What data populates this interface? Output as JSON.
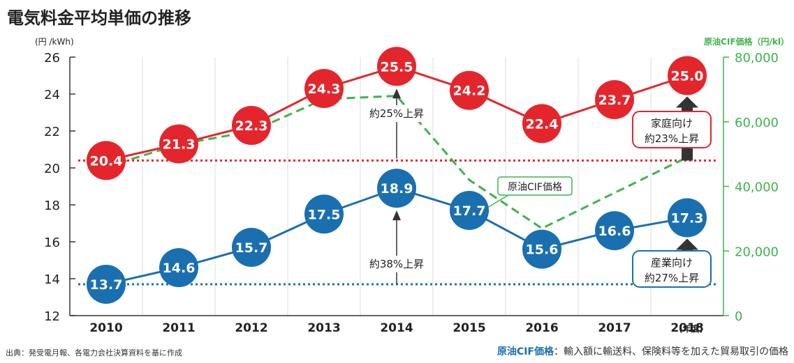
{
  "title": "電気料金平均単価の推移",
  "chart_data": {
    "type": "line",
    "categories": [
      "2010",
      "2011",
      "2012",
      "2013",
      "2014",
      "2015",
      "2016",
      "2017",
      "2018"
    ],
    "x_unit": "(年度)",
    "y_left": {
      "unit": "(円 /kWh)",
      "range": [
        12,
        26
      ],
      "ticks": [
        12,
        14,
        16,
        18,
        20,
        22,
        24,
        26
      ]
    },
    "y_right": {
      "unit": "原油CIF価格（円/kl）",
      "range": [
        0,
        80000
      ],
      "ticks": [
        "0",
        "20,000",
        "40,000",
        "60,000",
        "80,000"
      ]
    },
    "series": [
      {
        "name": "家庭向け",
        "color": "#e4262c",
        "axis": "left",
        "values": [
          20.4,
          21.3,
          22.3,
          24.3,
          25.5,
          24.2,
          22.4,
          23.7,
          25.0
        ],
        "labels": [
          "20.4",
          "21.3",
          "22.3",
          "24.3",
          "25.5",
          "24.2",
          "22.4",
          "23.7",
          "25.0"
        ]
      },
      {
        "name": "産業向け",
        "color": "#1a6fb0",
        "axis": "left",
        "values": [
          13.7,
          14.6,
          15.7,
          17.5,
          18.9,
          17.7,
          15.6,
          16.6,
          17.3
        ],
        "labels": [
          "13.7",
          "14.6",
          "15.7",
          "17.5",
          "18.9",
          "17.7",
          "15.6",
          "16.6",
          "17.3"
        ]
      },
      {
        "name": "原油CIF価格",
        "color": "#3db449",
        "axis": "right",
        "values": [
          46000,
          53000,
          57000,
          67000,
          68000,
          42000,
          27000,
          38000,
          49000
        ]
      }
    ],
    "reference_lines": [
      {
        "value": 20.4,
        "color": "#e4262c",
        "style": "dotted"
      },
      {
        "value": 13.7,
        "color": "#1a6fb0",
        "style": "dotted"
      }
    ],
    "annotations": [
      {
        "text": "約25%上昇",
        "series": "家庭向け",
        "category": "2014"
      },
      {
        "text": "約38%上昇",
        "series": "産業向け",
        "category": "2014"
      }
    ],
    "callouts": [
      {
        "lines": [
          "家庭向け",
          "約23%上昇"
        ],
        "color": "#e4262c"
      },
      {
        "lines": [
          "産業向け",
          "約27%上昇"
        ],
        "color": "#1a6fb0"
      }
    ],
    "oil_label": "原油CIF価格"
  },
  "footer": {
    "source": "出典：発受電月報、各電力会社決算資料を基に作成",
    "definition_key": "原油CIF価格",
    "definition_text": "：輸入額に輸送料、保険料等を加えた貿易取引の価格"
  }
}
